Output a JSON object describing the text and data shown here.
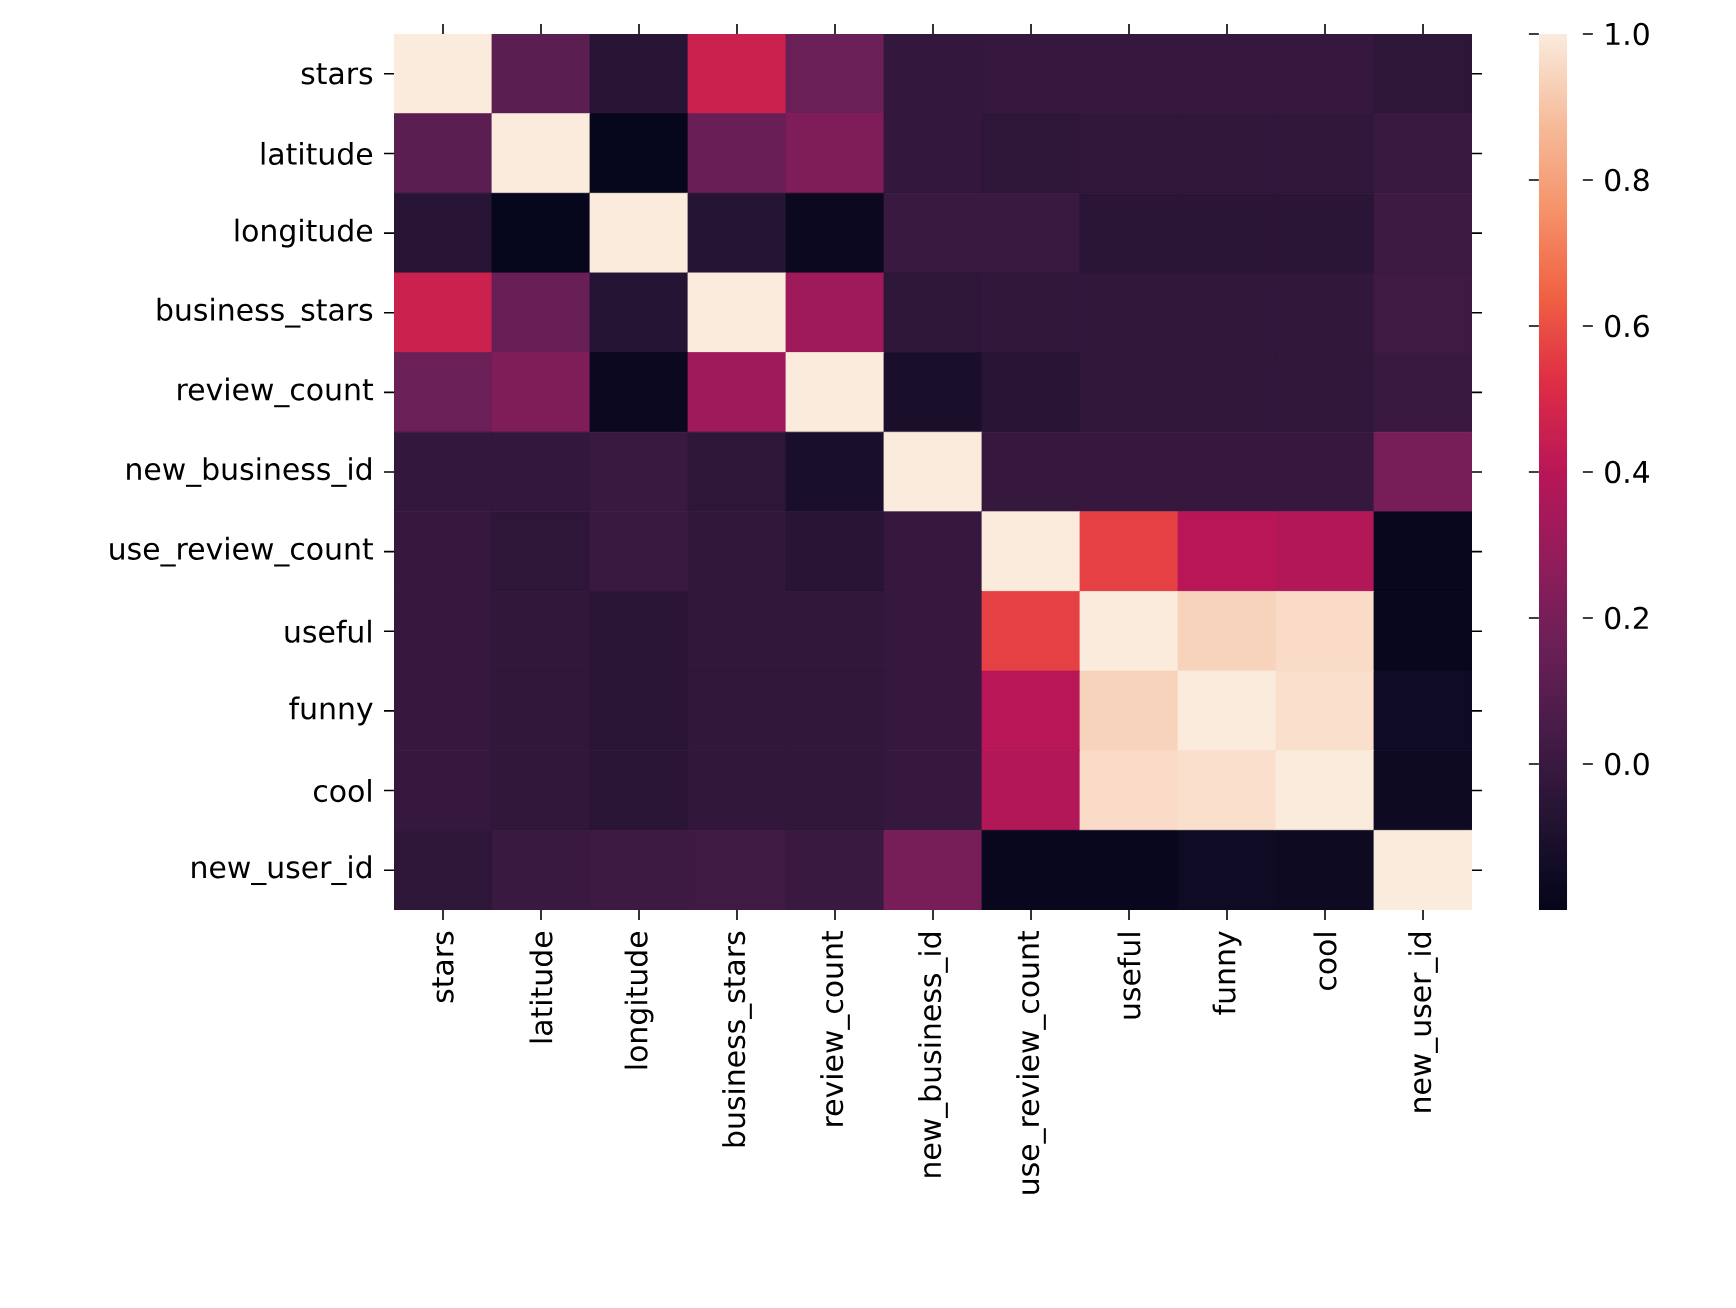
{
  "chart_data": {
    "type": "heatmap",
    "categories": [
      "stars",
      "latitude",
      "longitude",
      "business_stars",
      "review_count",
      "new_business_id",
      "use_review_count",
      "useful",
      "funny",
      "cool",
      "new_user_id"
    ],
    "y_categories": [
      "stars",
      "latitude",
      "longitude",
      "business_stars",
      "review_count",
      "new_business_id",
      "use_review_count",
      "useful",
      "funny",
      "cool",
      "new_user_id"
    ],
    "cells": [
      [
        1.0,
        0.11,
        -0.06,
        0.46,
        0.16,
        -0.02,
        -0.01,
        -0.01,
        -0.01,
        -0.01,
        -0.04
      ],
      [
        0.11,
        1.0,
        -0.19,
        0.15,
        0.22,
        -0.02,
        -0.04,
        -0.03,
        -0.03,
        -0.03,
        0.0
      ],
      [
        -0.06,
        -0.19,
        1.0,
        -0.07,
        -0.17,
        0.0,
        0.0,
        -0.05,
        -0.05,
        -0.05,
        0.01
      ],
      [
        0.46,
        0.15,
        -0.07,
        1.0,
        0.32,
        -0.04,
        -0.03,
        -0.03,
        -0.03,
        -0.03,
        0.02
      ],
      [
        0.16,
        0.22,
        -0.17,
        0.32,
        1.0,
        -0.11,
        -0.06,
        -0.03,
        -0.03,
        -0.03,
        0.0
      ],
      [
        -0.02,
        -0.02,
        0.0,
        -0.04,
        -0.11,
        1.0,
        -0.01,
        -0.01,
        -0.01,
        -0.01,
        0.2
      ],
      [
        -0.01,
        -0.04,
        0.0,
        -0.03,
        -0.06,
        -0.01,
        1.0,
        0.57,
        0.4,
        0.38,
        -0.18
      ],
      [
        -0.01,
        -0.03,
        -0.05,
        -0.03,
        -0.03,
        -0.01,
        0.57,
        1.0,
        0.94,
        0.96,
        -0.18
      ],
      [
        -0.01,
        -0.03,
        -0.05,
        -0.03,
        -0.03,
        -0.01,
        0.4,
        0.94,
        1.0,
        0.97,
        -0.15
      ],
      [
        -0.01,
        -0.03,
        -0.05,
        -0.03,
        -0.03,
        -0.01,
        0.38,
        0.96,
        0.97,
        1.0,
        -0.16
      ],
      [
        -0.04,
        0.0,
        0.01,
        0.02,
        0.0,
        0.2,
        -0.18,
        -0.18,
        -0.15,
        -0.16,
        1.0
      ]
    ],
    "clim": [
      -0.2,
      1.0
    ],
    "cticks": [
      {
        "value": 0.0,
        "label": "0.0"
      },
      {
        "value": 0.2,
        "label": "0.2"
      },
      {
        "value": 0.4,
        "label": "0.4"
      },
      {
        "value": 0.6,
        "label": "0.6"
      },
      {
        "value": 0.8,
        "label": "0.8"
      },
      {
        "value": 1.0,
        "label": "1.0"
      }
    ]
  }
}
